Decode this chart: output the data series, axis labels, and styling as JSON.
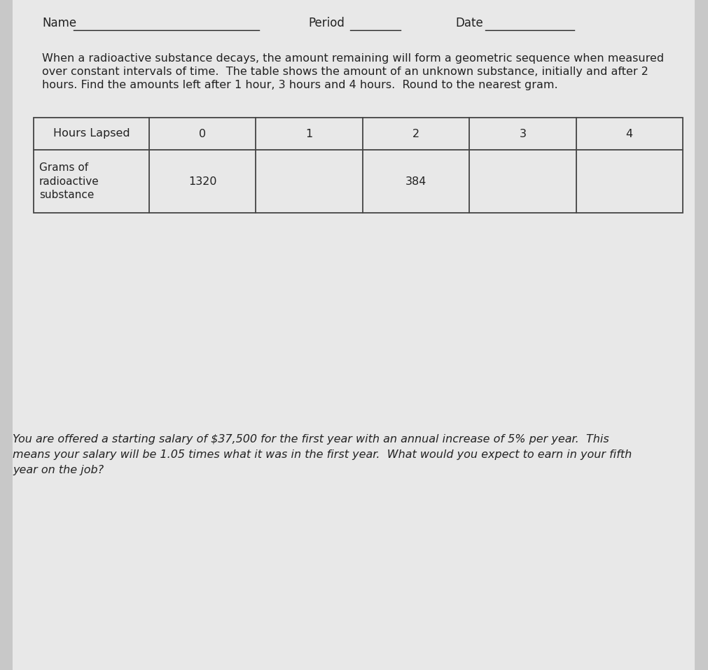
{
  "bg_color": "#c8c8c8",
  "paper_color": "#e8e8e8",
  "name_label": "Name",
  "period_label": "Period",
  "date_label": "Date",
  "paragraph1_line1": "When a radioactive substance decays, the amount remaining will form a geometric sequence when measured",
  "paragraph1_line2": "over constant intervals of time.  The table shows the amount of an unknown substance, initially and after 2",
  "paragraph1_line3": "hours. Find the amounts left after 1 hour, 3 hours and 4 hours.  Round to the nearest gram.",
  "table_header": [
    "Hours Lapsed",
    "0",
    "1",
    "2",
    "3",
    "4"
  ],
  "table_row_label": "Grams of\nradioactive\nsubstance",
  "table_data": [
    "1320",
    "",
    "384",
    "",
    ""
  ],
  "paragraph2_line1": "You are offered a starting salary of $37,500 for the first year with an annual increase of 5% per year.  This",
  "paragraph2_line2": "means your salary will be 1.05 times what it was in the first year.  What would you expect to earn in your fifth",
  "paragraph2_line3": "year on the job?",
  "text_color": "#222222",
  "table_border_color": "#444444",
  "font_size": 11.5,
  "font_size_name": 12.0
}
